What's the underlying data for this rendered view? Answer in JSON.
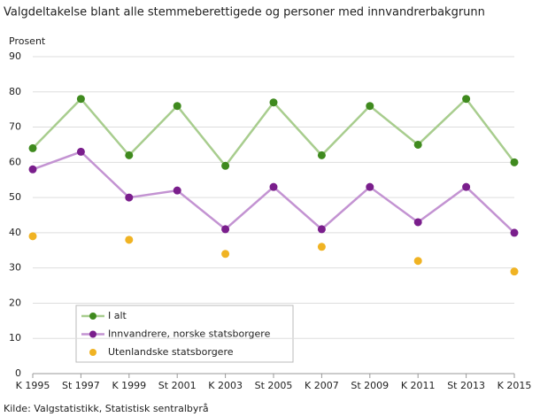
{
  "chart_data": {
    "type": "line",
    "title": "Valgdeltakelse blant alle stemmeberettigede og personer med innvandrerbakgrunn",
    "y_label": "Prosent",
    "source": "Kilde: Valgstatistikk, Statistisk sentralbyrå",
    "categories": [
      "K 1995",
      "St 1997",
      "K 1999",
      "St 2001",
      "K 2003",
      "St 2005",
      "K 2007",
      "St 2009",
      "K 2011",
      "St 2013",
      "K 2015"
    ],
    "series": [
      {
        "name": "I alt",
        "color": "#3f8a1e",
        "line_color": "#a8cd8e",
        "values": [
          64,
          78,
          62,
          76,
          59,
          77,
          62,
          76,
          65,
          78,
          60
        ]
      },
      {
        "name": "Innvandrere, norske statsborgere",
        "color": "#7a1e8c",
        "line_color": "#c393d2",
        "values": [
          58,
          63,
          50,
          52,
          41,
          53,
          41,
          53,
          43,
          53,
          40
        ]
      },
      {
        "name": "Utenlandske statsborgere",
        "color": "#f0b323",
        "values": [
          39,
          null,
          38,
          null,
          34,
          null,
          36,
          null,
          32,
          null,
          29
        ]
      }
    ],
    "ylim": [
      0,
      90
    ],
    "yticks": [
      0,
      10,
      20,
      30,
      40,
      50,
      60,
      70,
      80,
      90
    ],
    "grid": true
  }
}
